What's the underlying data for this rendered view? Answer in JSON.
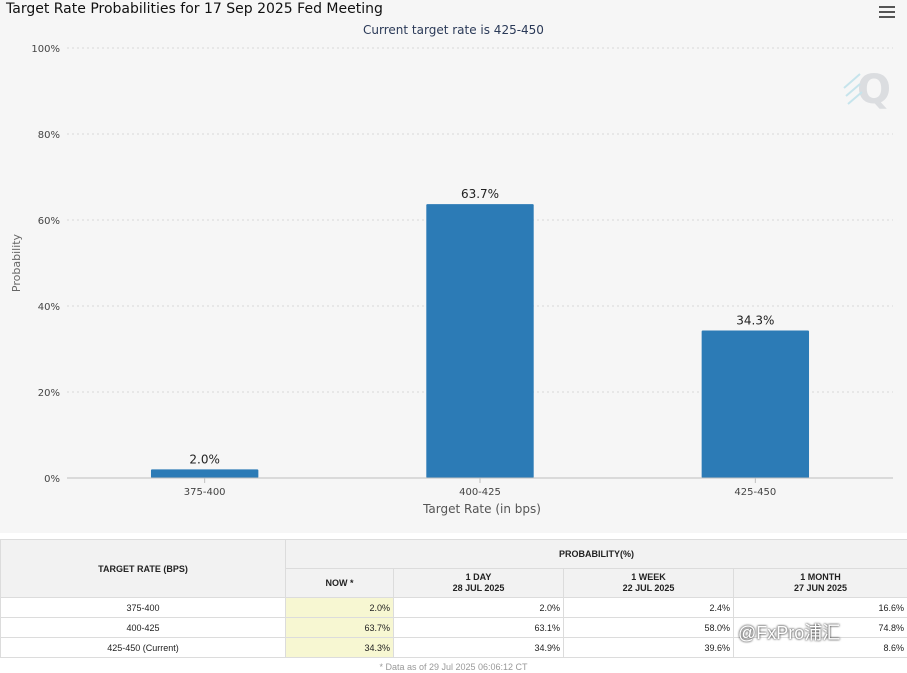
{
  "chart_data": {
    "type": "bar",
    "title": "Target Rate Probabilities for 17 Sep 2025 Fed Meeting",
    "subtitle": "Current target rate is 425-450",
    "categories": [
      "375-400",
      "400-425",
      "425-450"
    ],
    "values": [
      2.0,
      63.7,
      34.3
    ],
    "data_labels": [
      "2.0%",
      "63.7%",
      "34.3%"
    ],
    "xlabel": "Target Rate (in bps)",
    "ylabel": "Probability",
    "ylim": [
      0,
      100
    ],
    "yticks": [
      "0%",
      "20%",
      "40%",
      "60%",
      "80%",
      "100%"
    ],
    "grid": true,
    "bar_color": "#2c7bb6"
  },
  "table": {
    "col_rate": "TARGET RATE (BPS)",
    "col_prob": "PROBABILITY(%)",
    "sub_now": "NOW *",
    "sub_1day": "1 DAY",
    "sub_1day_date": "28 JUL 2025",
    "sub_1week": "1 WEEK",
    "sub_1week_date": "22 JUL 2025",
    "sub_1month": "1 MONTH",
    "sub_1month_date": "27 JUN 2025",
    "rows": [
      {
        "rate": "375-400",
        "now": "2.0%",
        "day": "2.0%",
        "week": "2.4%",
        "month": "16.6%"
      },
      {
        "rate": "400-425",
        "now": "63.7%",
        "day": "63.1%",
        "week": "58.0%",
        "month": "74.8%"
      },
      {
        "rate": "425-450 (Current)",
        "now": "34.3%",
        "day": "34.9%",
        "week": "39.6%",
        "month": "8.6%"
      }
    ]
  },
  "footnote": "* Data as of 29 Jul 2025 06:06:12 CT",
  "watermark": "@FxPro浦汇",
  "icons": {
    "menu": "hamburger-menu-icon",
    "logo": "cme-q-logo"
  }
}
